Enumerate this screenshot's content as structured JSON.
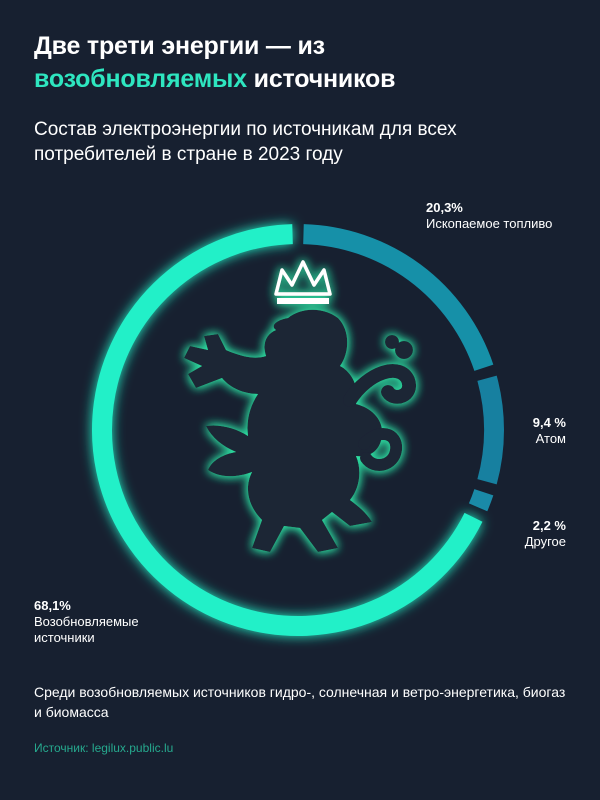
{
  "header": {
    "title_part1": "Две трети энергии — из",
    "title_accent": "возобновляемых",
    "title_part2": "источников",
    "subtitle": "Состав электроэнергии по источникам для всех потребителей в стране в 2023 году"
  },
  "labels": {
    "fossil_value": "20,3%",
    "fossil_name": "Ископаемое топливо",
    "nuclear_value": "9,4 %",
    "nuclear_name": "Атом",
    "other_value": "2,2 %",
    "other_name": "Другое",
    "renew_value": "68,1%",
    "renew_name": "Возобновляемые источники"
  },
  "footer": {
    "note": "Среди возобновляемых источников гидро-, солнечная и ветро-энергетика, биогаз и биомасса",
    "source": "Источник: legilux.public.lu"
  },
  "colors": {
    "background": "#172030",
    "accent": "#2ee6c0",
    "fossil": "#1690a8",
    "nuclear": "#1780a0",
    "other": "#1a8aa8",
    "renewable": "#24f0c8",
    "emblem_fill": "#1b2536",
    "emblem_glow": "#30e8a8"
  },
  "emblem": {
    "icon": "crowned-lion-icon"
  },
  "chart_data": {
    "type": "pie",
    "variant": "donut",
    "title": "Состав электроэнергии по источникам для всех потребителей в стране в 2023 году",
    "categories": [
      "Ископаемое топливо",
      "Атом",
      "Другое",
      "Возобновляемые источники"
    ],
    "values": [
      20.3,
      9.4,
      2.2,
      68.1
    ],
    "unit": "%"
  }
}
